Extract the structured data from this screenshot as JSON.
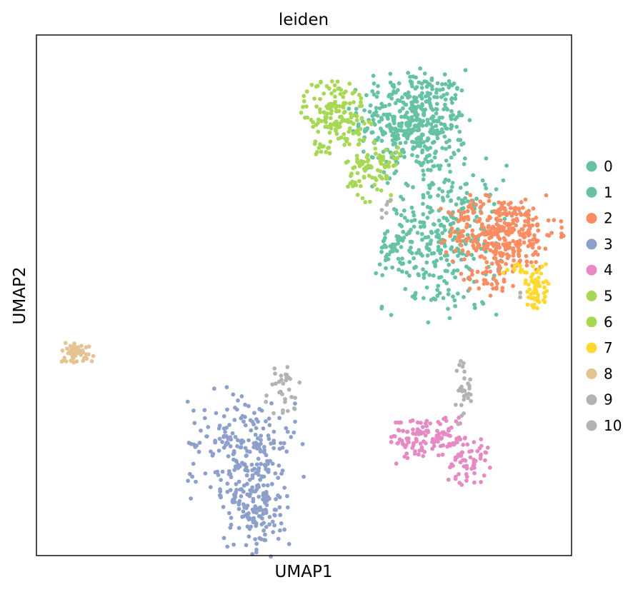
{
  "chart_data": {
    "type": "scatter",
    "title": "leiden",
    "xlabel": "UMAP1",
    "ylabel": "UMAP2",
    "xlim": [
      0,
      100
    ],
    "ylim": [
      0,
      100
    ],
    "grid": false,
    "ticks": false,
    "legend_position": "right",
    "point_count_note": "",
    "series": [
      {
        "name": "0",
        "color": "#66c2a5",
        "clusters": [
          {
            "cx": 70.5,
            "cy": 83.5,
            "sx": 5.0,
            "sy": 5.0,
            "n": 430
          },
          {
            "cx": 76.0,
            "cy": 61.0,
            "sx": 5.5,
            "sy": 7.0,
            "n": 330
          },
          {
            "cx": 67.0,
            "cy": 59.0,
            "sx": 1.8,
            "sy": 1.4,
            "n": 30
          }
        ]
      },
      {
        "name": "1",
        "color": "#66c2a5",
        "clusters": []
      },
      {
        "name": "2",
        "color": "#fc8d62",
        "clusters": [
          {
            "cx": 87.0,
            "cy": 62.0,
            "sx": 5.0,
            "sy": 3.5,
            "n": 340
          },
          {
            "cx": 85.0,
            "cy": 54.0,
            "sx": 2.5,
            "sy": 2.0,
            "n": 40
          }
        ]
      },
      {
        "name": "3",
        "color": "#8da0cb",
        "clusters": [
          {
            "cx": 38.5,
            "cy": 21.5,
            "sx": 5.0,
            "sy": 5.0,
            "n": 190
          },
          {
            "cx": 41.0,
            "cy": 10.0,
            "sx": 3.0,
            "sy": 4.5,
            "n": 170
          }
        ]
      },
      {
        "name": "4",
        "color": "#e78ac3",
        "clusters": [
          {
            "cx": 73.0,
            "cy": 22.5,
            "sx": 3.6,
            "sy": 2.2,
            "n": 120
          },
          {
            "cx": 80.5,
            "cy": 18.5,
            "sx": 2.0,
            "sy": 2.3,
            "n": 60
          }
        ]
      },
      {
        "name": "5",
        "color": "#a6d854",
        "clusters": [
          {
            "cx": 56.0,
            "cy": 85.0,
            "sx": 3.0,
            "sy": 3.5,
            "n": 150
          },
          {
            "cx": 63.0,
            "cy": 74.0,
            "sx": 2.5,
            "sy": 3.0,
            "n": 90
          },
          {
            "cx": 53.5,
            "cy": 78.0,
            "sx": 0.8,
            "sy": 0.6,
            "n": 10
          }
        ]
      },
      {
        "name": "6",
        "color": "#a6d854",
        "clusters": []
      },
      {
        "name": "7",
        "color": "#ffd92f",
        "clusters": [
          {
            "cx": 93.5,
            "cy": 51.5,
            "sx": 1.1,
            "sy": 2.3,
            "n": 55
          },
          {
            "cx": 90.0,
            "cy": 55.0,
            "sx": 1.5,
            "sy": 0.6,
            "n": 12
          }
        ]
      },
      {
        "name": "8",
        "color": "#e5c494",
        "clusters": [
          {
            "cx": 7.5,
            "cy": 39.0,
            "sx": 1.6,
            "sy": 1.0,
            "n": 55
          }
        ]
      },
      {
        "name": "9",
        "color": "#b3b3b3",
        "clusters": [
          {
            "cx": 45.5,
            "cy": 31.5,
            "sx": 2.2,
            "sy": 3.0,
            "n": 30
          },
          {
            "cx": 80.0,
            "cy": 32.0,
            "sx": 0.8,
            "sy": 3.0,
            "n": 30
          }
        ]
      },
      {
        "name": "10",
        "color": "#b3b3b3",
        "clusters": [
          {
            "cx": 65.5,
            "cy": 67.0,
            "sx": 0.6,
            "sy": 1.2,
            "n": 6
          },
          {
            "cx": 90.0,
            "cy": 50.0,
            "sx": 0.4,
            "sy": 0.4,
            "n": 2
          }
        ]
      }
    ]
  }
}
